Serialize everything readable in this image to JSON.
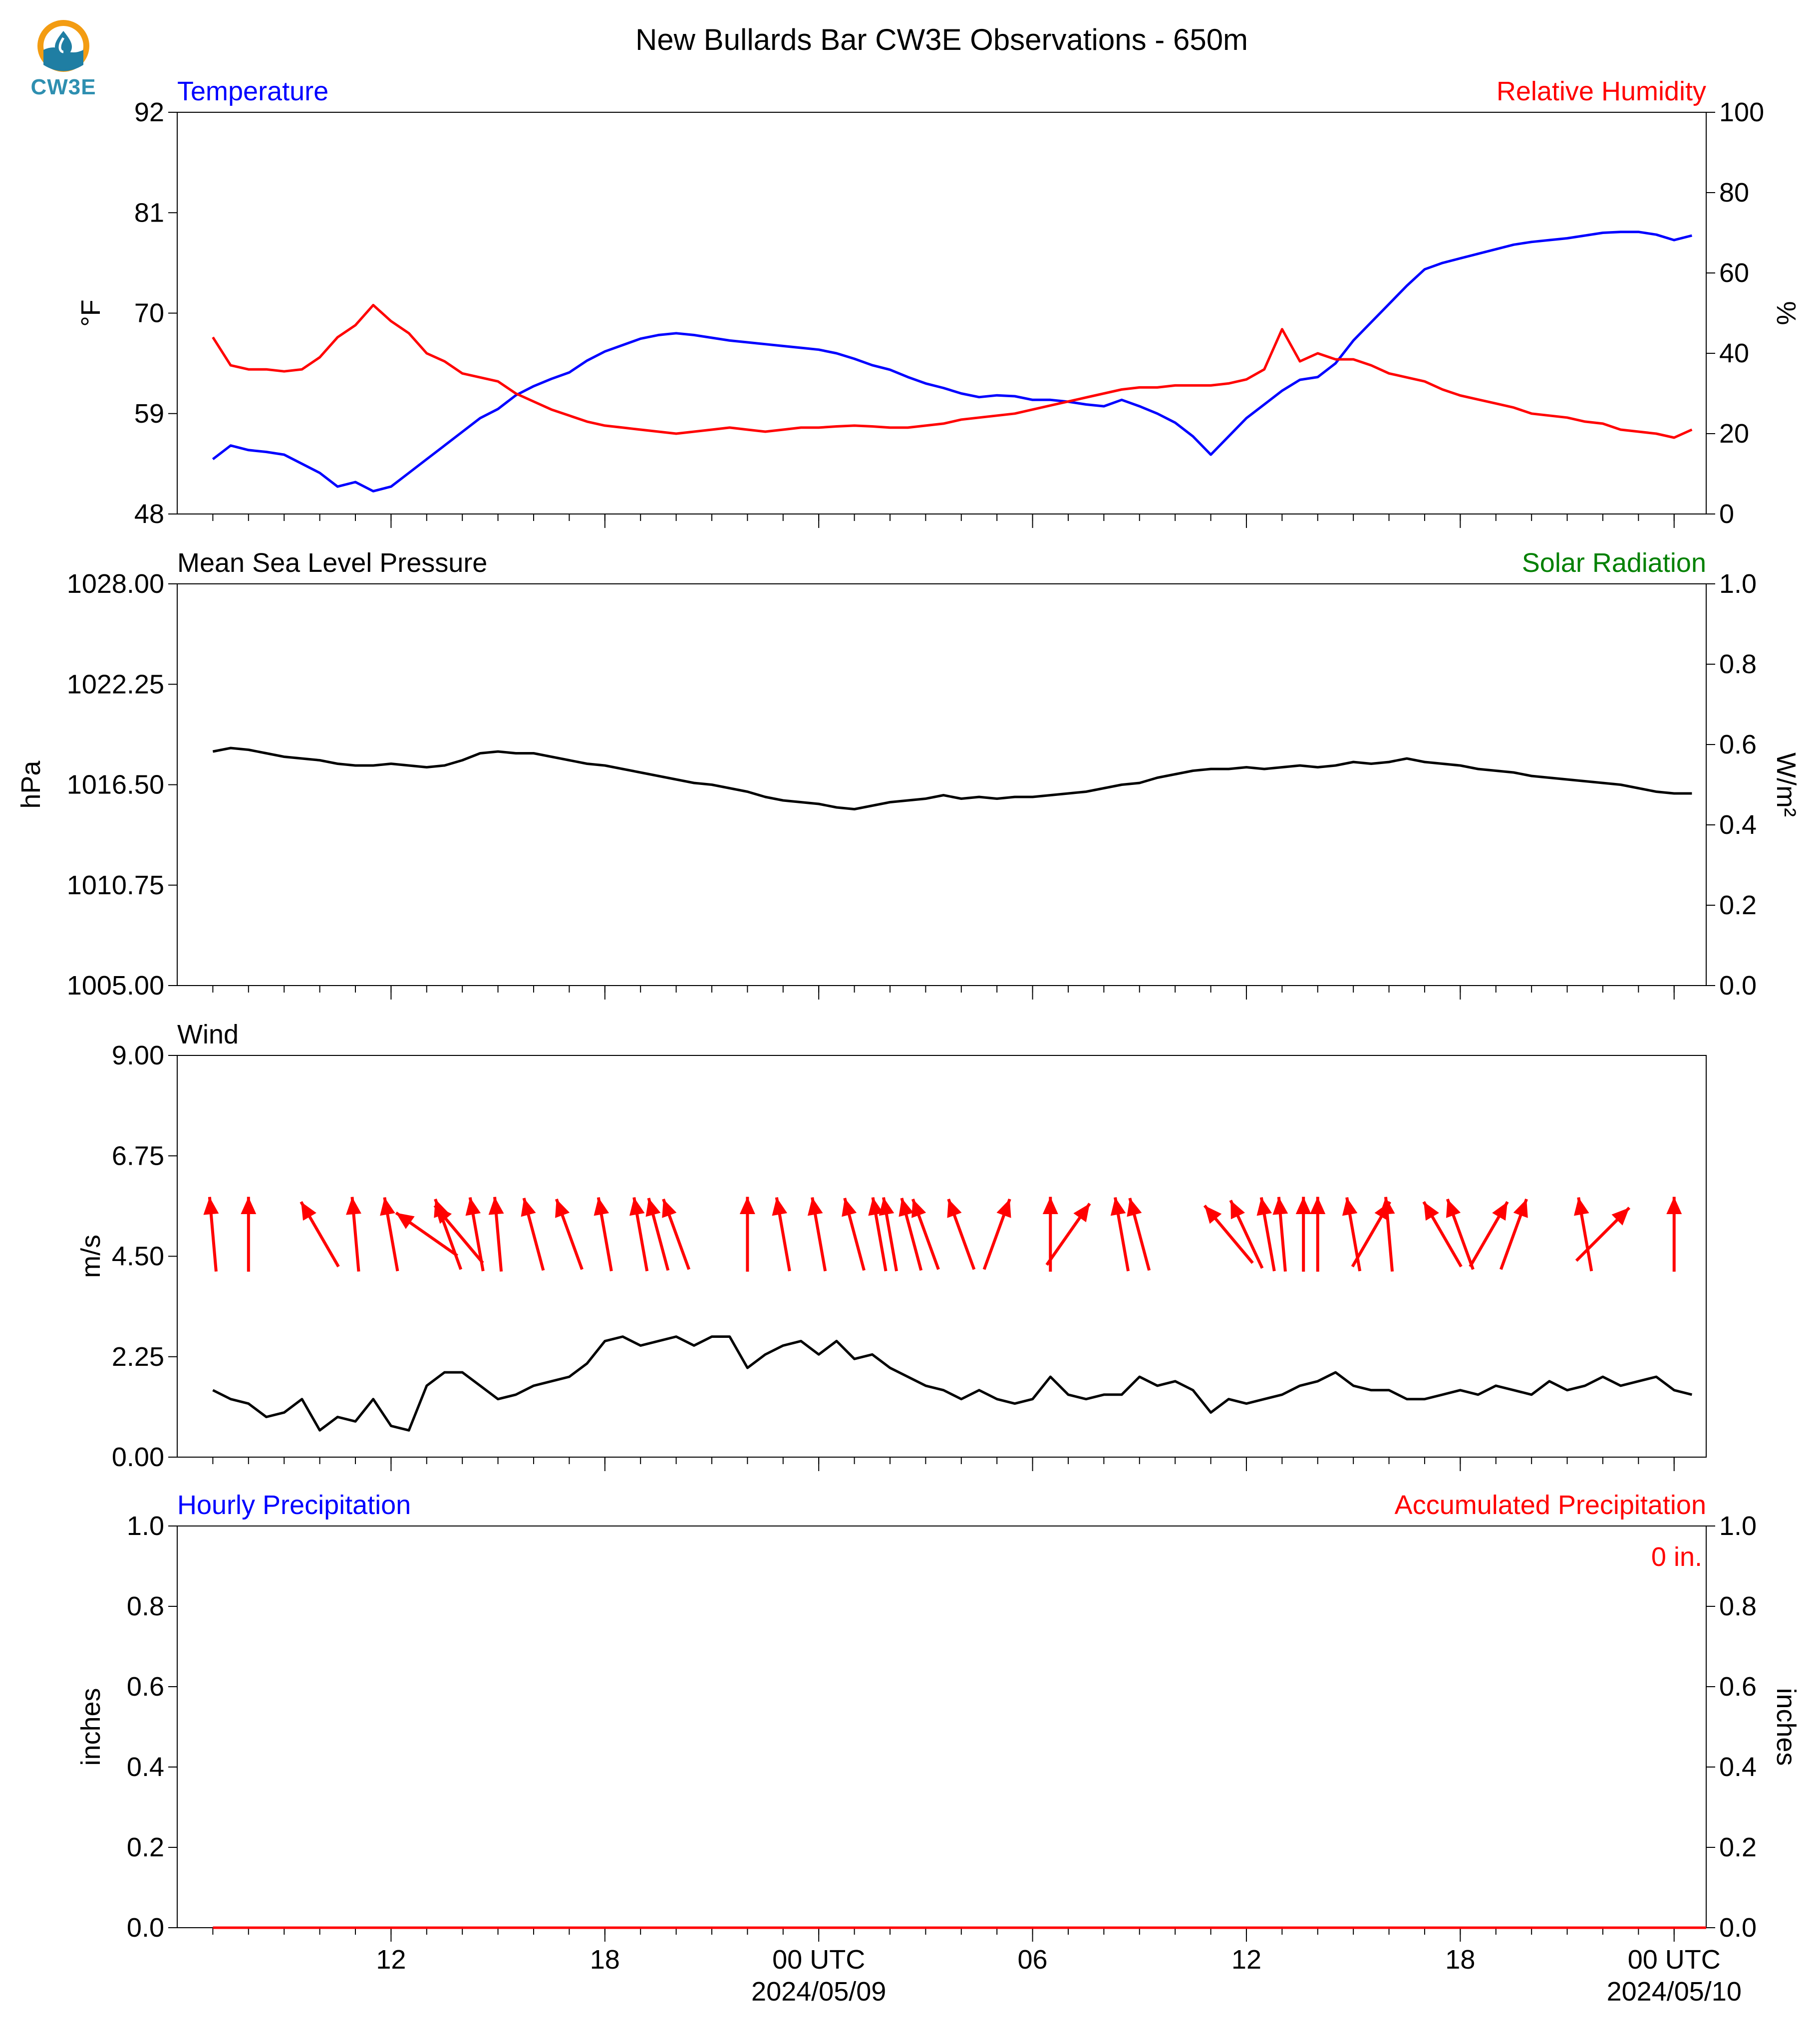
{
  "figure": {
    "title": "New Bullards Bar CW3E Observations - 650m",
    "logo_text": "CW3E",
    "colors": {
      "blue": "#0000ff",
      "red": "#ff0000",
      "green": "#008000",
      "black": "#000000"
    }
  },
  "time_axis": {
    "ticks": [
      {
        "hour": 11.0,
        "label": "12"
      },
      {
        "hour": 17.0,
        "label": "18"
      },
      {
        "hour": 23.0,
        "label": "00 UTC",
        "sublabel": "2024/05/09"
      },
      {
        "hour": 29.0,
        "label": "06"
      },
      {
        "hour": 35.0,
        "label": "12"
      },
      {
        "hour": 41.0,
        "label": "18"
      },
      {
        "hour": 47.0,
        "label": "00 UTC",
        "sublabel": "2024/05/10"
      }
    ],
    "minor_ticks_hours": [
      6,
      7,
      8,
      9,
      10,
      11,
      12,
      13,
      14,
      15,
      16,
      17,
      18,
      19,
      20,
      21,
      22,
      23,
      24,
      25,
      26,
      27,
      28,
      29,
      30,
      31,
      32,
      33,
      34,
      35,
      36,
      37,
      38,
      39,
      40,
      41,
      42,
      43,
      44,
      45,
      46,
      47
    ]
  },
  "chart_data": [
    {
      "id": "temp_rh",
      "type": "line",
      "left_title": "Temperature",
      "right_title": "Relative Humidity",
      "ylabel": "°F",
      "ylabel_right": "%",
      "ylim": [
        48,
        92
      ],
      "ylim_right": [
        0,
        100
      ],
      "yticks": [
        "48",
        "59",
        "70",
        "81",
        "92"
      ],
      "yticks_right": [
        "0",
        "20",
        "40",
        "60",
        "80",
        "100"
      ],
      "series": [
        {
          "name": "Temperature",
          "axis": "left",
          "color": "#0000ff",
          "x": [
            6.0,
            6.5,
            7.0,
            7.5,
            8.0,
            8.5,
            9.0,
            9.5,
            10.0,
            10.5,
            11.0,
            11.5,
            12.0,
            12.5,
            13.0,
            13.5,
            14.0,
            14.5,
            15.0,
            15.5,
            16.0,
            16.5,
            17.0,
            17.5,
            18.0,
            18.5,
            19.0,
            19.5,
            20.0,
            20.5,
            21.0,
            21.5,
            22.0,
            22.5,
            23.0,
            23.5,
            24.0,
            24.5,
            25.0,
            25.5,
            26.0,
            26.5,
            27.0,
            27.5,
            28.0,
            28.5,
            29.0,
            29.5,
            30.0,
            30.5,
            31.0,
            31.5,
            32.0,
            32.5,
            33.0,
            33.5,
            34.0,
            34.5,
            35.0,
            35.5,
            36.0,
            36.5,
            37.0,
            37.5,
            38.0,
            38.5,
            39.0,
            39.5,
            40.0,
            40.5,
            41.0,
            41.5,
            42.0,
            42.5,
            43.0,
            43.5,
            44.0,
            44.5,
            45.0,
            45.5,
            46.0,
            46.5,
            47.0,
            47.5
          ],
          "values": [
            54.0,
            55.5,
            55.0,
            54.8,
            54.5,
            53.5,
            52.5,
            51.0,
            51.5,
            50.5,
            51.0,
            52.5,
            54.0,
            55.5,
            57.0,
            58.5,
            59.5,
            61.0,
            62.0,
            62.8,
            63.5,
            64.8,
            65.8,
            66.5,
            67.2,
            67.6,
            67.8,
            67.6,
            67.3,
            67.0,
            66.8,
            66.6,
            66.4,
            66.2,
            66.0,
            65.6,
            65.0,
            64.3,
            63.8,
            63.0,
            62.3,
            61.8,
            61.2,
            60.8,
            61.0,
            60.9,
            60.5,
            60.5,
            60.3,
            60.0,
            59.8,
            60.5,
            59.8,
            59.0,
            58.0,
            56.5,
            54.5,
            56.5,
            58.5,
            60.0,
            61.5,
            62.7,
            63.0,
            64.5,
            67.0,
            69.0,
            71.0,
            73.0,
            74.8,
            75.5,
            76.0,
            76.5,
            77.0,
            77.5,
            77.8,
            78.0,
            78.2,
            78.5,
            78.8,
            78.9,
            78.9,
            78.6,
            78.0,
            78.5
          ]
        },
        {
          "name": "Relative Humidity",
          "axis": "right",
          "color": "#ff0000",
          "x": [
            6.0,
            6.5,
            7.0,
            7.5,
            8.0,
            8.5,
            9.0,
            9.5,
            10.0,
            10.5,
            11.0,
            11.5,
            12.0,
            12.5,
            13.0,
            13.5,
            14.0,
            14.5,
            15.0,
            15.5,
            16.0,
            16.5,
            17.0,
            17.5,
            18.0,
            18.5,
            19.0,
            19.5,
            20.0,
            20.5,
            21.0,
            21.5,
            22.0,
            22.5,
            23.0,
            23.5,
            24.0,
            24.5,
            25.0,
            25.5,
            26.0,
            26.5,
            27.0,
            27.5,
            28.0,
            28.5,
            29.0,
            29.5,
            30.0,
            30.5,
            31.0,
            31.5,
            32.0,
            32.5,
            33.0,
            33.5,
            34.0,
            34.5,
            35.0,
            35.5,
            36.0,
            36.5,
            37.0,
            37.5,
            38.0,
            38.5,
            39.0,
            39.5,
            40.0,
            40.5,
            41.0,
            41.5,
            42.0,
            42.5,
            43.0,
            43.5,
            44.0,
            44.5,
            45.0,
            45.5,
            46.0,
            46.5,
            47.0,
            47.5
          ],
          "values": [
            44.0,
            37.0,
            36.0,
            36.0,
            35.5,
            36.0,
            39.0,
            44.0,
            47.0,
            52.0,
            48.0,
            45.0,
            40.0,
            38.0,
            35.0,
            34.0,
            33.0,
            30.0,
            28.0,
            26.0,
            24.5,
            23.0,
            22.0,
            21.5,
            21.0,
            20.5,
            20.0,
            20.5,
            21.0,
            21.5,
            21.0,
            20.5,
            21.0,
            21.5,
            21.5,
            21.8,
            22.0,
            21.8,
            21.5,
            21.5,
            22.0,
            22.5,
            23.5,
            24.0,
            24.5,
            25.0,
            26.0,
            27.0,
            28.0,
            29.0,
            30.0,
            31.0,
            31.5,
            31.5,
            32.0,
            32.0,
            32.0,
            32.5,
            33.5,
            36.0,
            46.0,
            38.0,
            40.0,
            38.5,
            38.5,
            37.0,
            35.0,
            34.0,
            33.0,
            31.0,
            29.5,
            28.5,
            27.5,
            26.5,
            25.0,
            24.5,
            24.0,
            23.0,
            22.5,
            21.0,
            20.5,
            20.0,
            19.0,
            21.0
          ]
        }
      ]
    },
    {
      "id": "pressure_solar",
      "type": "line",
      "left_title": "Mean Sea Level Pressure",
      "right_title": "Solar Radiation",
      "ylabel": "hPa",
      "ylabel_right": "W/m²",
      "ylim": [
        1005.0,
        1028.0
      ],
      "ylim_right": [
        0.0,
        1.0
      ],
      "yticks": [
        "1005.00",
        "1010.75",
        "1016.50",
        "1022.25",
        "1028.00"
      ],
      "yticks_right": [
        "0.0",
        "0.2",
        "0.4",
        "0.6",
        "0.8",
        "1.0"
      ],
      "series": [
        {
          "name": "Mean Sea Level Pressure",
          "axis": "left",
          "color": "#000000",
          "x": [
            6.0,
            6.5,
            7.0,
            7.5,
            8.0,
            8.5,
            9.0,
            9.5,
            10.0,
            10.5,
            11.0,
            11.5,
            12.0,
            12.5,
            13.0,
            13.5,
            14.0,
            14.5,
            15.0,
            15.5,
            16.0,
            16.5,
            17.0,
            17.5,
            18.0,
            18.5,
            19.0,
            19.5,
            20.0,
            20.5,
            21.0,
            21.5,
            22.0,
            22.5,
            23.0,
            23.5,
            24.0,
            24.5,
            25.0,
            25.5,
            26.0,
            26.5,
            27.0,
            27.5,
            28.0,
            28.5,
            29.0,
            29.5,
            30.0,
            30.5,
            31.0,
            31.5,
            32.0,
            32.5,
            33.0,
            33.5,
            34.0,
            34.5,
            35.0,
            35.5,
            36.0,
            36.5,
            37.0,
            37.5,
            38.0,
            38.5,
            39.0,
            39.5,
            40.0,
            40.5,
            41.0,
            41.5,
            42.0,
            42.5,
            43.0,
            43.5,
            44.0,
            44.5,
            45.0,
            45.5,
            46.0,
            46.5,
            47.0,
            47.5
          ],
          "values": [
            1018.4,
            1018.6,
            1018.5,
            1018.3,
            1018.1,
            1018.0,
            1017.9,
            1017.7,
            1017.6,
            1017.6,
            1017.7,
            1017.6,
            1017.5,
            1017.6,
            1017.9,
            1018.3,
            1018.4,
            1018.3,
            1018.3,
            1018.1,
            1017.9,
            1017.7,
            1017.6,
            1017.4,
            1017.2,
            1017.0,
            1016.8,
            1016.6,
            1016.5,
            1016.3,
            1016.1,
            1015.8,
            1015.6,
            1015.5,
            1015.4,
            1015.2,
            1015.1,
            1015.3,
            1015.5,
            1015.6,
            1015.7,
            1015.9,
            1015.7,
            1015.8,
            1015.7,
            1015.8,
            1015.8,
            1015.9,
            1016.0,
            1016.1,
            1016.3,
            1016.5,
            1016.6,
            1016.9,
            1017.1,
            1017.3,
            1017.4,
            1017.4,
            1017.5,
            1017.4,
            1017.5,
            1017.6,
            1017.5,
            1017.6,
            1017.8,
            1017.7,
            1017.8,
            1018.0,
            1017.8,
            1017.7,
            1017.6,
            1017.4,
            1017.3,
            1017.2,
            1017.0,
            1016.9,
            1016.8,
            1016.7,
            1016.6,
            1016.5,
            1016.3,
            1016.1,
            1016.0,
            1016.0
          ]
        }
      ]
    },
    {
      "id": "wind",
      "type": "line",
      "left_title": "Wind",
      "ylabel": "m/s",
      "ylim": [
        0.0,
        9.0
      ],
      "yticks": [
        "0.00",
        "2.25",
        "4.50",
        "6.75",
        "9.00"
      ],
      "series": [
        {
          "name": "Wind",
          "axis": "left",
          "color": "#000000",
          "x": [
            6.0,
            6.5,
            7.0,
            7.5,
            8.0,
            8.5,
            9.0,
            9.5,
            10.0,
            10.5,
            11.0,
            11.5,
            12.0,
            12.5,
            13.0,
            13.5,
            14.0,
            14.5,
            15.0,
            15.5,
            16.0,
            16.5,
            17.0,
            17.5,
            18.0,
            18.5,
            19.0,
            19.5,
            20.0,
            20.5,
            21.0,
            21.5,
            22.0,
            22.5,
            23.0,
            23.5,
            24.0,
            24.5,
            25.0,
            25.5,
            26.0,
            26.5,
            27.0,
            27.5,
            28.0,
            28.5,
            29.0,
            29.5,
            30.0,
            30.5,
            31.0,
            31.5,
            32.0,
            32.5,
            33.0,
            33.5,
            34.0,
            34.5,
            35.0,
            35.5,
            36.0,
            36.5,
            37.0,
            37.5,
            38.0,
            38.5,
            39.0,
            39.5,
            40.0,
            40.5,
            41.0,
            41.5,
            42.0,
            42.5,
            43.0,
            43.5,
            44.0,
            44.5,
            45.0,
            45.5,
            46.0,
            46.5,
            47.0,
            47.5
          ],
          "values": [
            1.5,
            1.3,
            1.2,
            0.9,
            1.0,
            1.3,
            0.6,
            0.9,
            0.8,
            1.3,
            0.7,
            0.6,
            1.6,
            1.9,
            1.9,
            1.6,
            1.3,
            1.4,
            1.6,
            1.7,
            1.8,
            2.1,
            2.6,
            2.7,
            2.5,
            2.6,
            2.7,
            2.5,
            2.7,
            2.7,
            2.0,
            2.3,
            2.5,
            2.6,
            2.3,
            2.6,
            2.2,
            2.3,
            2.0,
            1.8,
            1.6,
            1.5,
            1.3,
            1.5,
            1.3,
            1.2,
            1.3,
            1.8,
            1.4,
            1.3,
            1.4,
            1.4,
            1.8,
            1.6,
            1.7,
            1.5,
            1.0,
            1.3,
            1.2,
            1.3,
            1.4,
            1.6,
            1.7,
            1.9,
            1.6,
            1.5,
            1.5,
            1.3,
            1.3,
            1.4,
            1.5,
            1.4,
            1.6,
            1.5,
            1.4,
            1.7,
            1.5,
            1.6,
            1.8,
            1.6,
            1.7,
            1.8,
            1.5,
            1.4
          ]
        },
        {
          "name": "Wind direction",
          "axis": "left",
          "color": "#ff0000",
          "x": [
            6.0,
            7.0,
            9.0,
            10.0,
            11.0,
            12.0,
            12.6,
            12.9,
            13.4,
            14.0,
            15.0,
            16.0,
            17.0,
            18.0,
            18.5,
            19.0,
            21.0,
            22.0,
            23.0,
            24.0,
            24.7,
            25.0,
            25.6,
            26.0,
            27.0,
            28.0,
            29.5,
            30.0,
            31.5,
            32.0,
            34.5,
            35.0,
            35.6,
            36.0,
            36.6,
            37.0,
            38.0,
            38.5,
            39.0,
            40.5,
            41.0,
            41.8,
            42.5,
            44.5,
            45.0,
            47.0
          ],
          "bearings_deg": [
            175,
            180,
            150,
            175,
            170,
            125,
            160,
            140,
            170,
            175,
            165,
            160,
            170,
            170,
            165,
            160,
            180,
            170,
            170,
            165,
            170,
            170,
            165,
            160,
            160,
            200,
            180,
            215,
            170,
            165,
            140,
            155,
            170,
            175,
            180,
            180,
            170,
            210,
            175,
            150,
            160,
            210,
            200,
            170,
            225,
            180
          ],
          "arrow_y": [
            6.0,
            6.0,
            6.0,
            6.0,
            6.0,
            6.0,
            6.0,
            6.0,
            6.0,
            6.0,
            6.0,
            6.0,
            6.0,
            6.0,
            6.0,
            6.0,
            6.0,
            6.0,
            6.0,
            6.0,
            6.0,
            6.0,
            6.0,
            6.0,
            6.0,
            6.0,
            6.0,
            6.0,
            6.0,
            6.0,
            6.0,
            6.0,
            6.0,
            6.0,
            6.0,
            6.0,
            6.0,
            6.0,
            6.0,
            6.0,
            6.0,
            6.0,
            6.0,
            6.0,
            6.0,
            6.0
          ]
        }
      ]
    },
    {
      "id": "precip",
      "type": "line",
      "left_title": "Hourly Precipitation",
      "right_title": "Accumulated Precipitation",
      "annotation": "0 in.",
      "ylabel": "inches",
      "ylabel_right": "inches",
      "ylim": [
        0.0,
        1.0
      ],
      "ylim_right": [
        0.0,
        1.0
      ],
      "yticks": [
        "0.0",
        "0.2",
        "0.4",
        "0.6",
        "0.8",
        "1.0"
      ],
      "yticks_right": [
        "0.0",
        "0.2",
        "0.4",
        "0.6",
        "0.8",
        "1.0"
      ],
      "series": [
        {
          "name": "Hourly Precipitation",
          "axis": "left",
          "color": "#0000ff",
          "x": [
            6.0,
            47.9
          ],
          "values": [
            0.0,
            0.0
          ]
        },
        {
          "name": "Accumulated Precipitation",
          "axis": "right",
          "color": "#ff0000",
          "x": [
            6.0,
            47.9
          ],
          "values": [
            0.0,
            0.0
          ]
        }
      ]
    }
  ]
}
